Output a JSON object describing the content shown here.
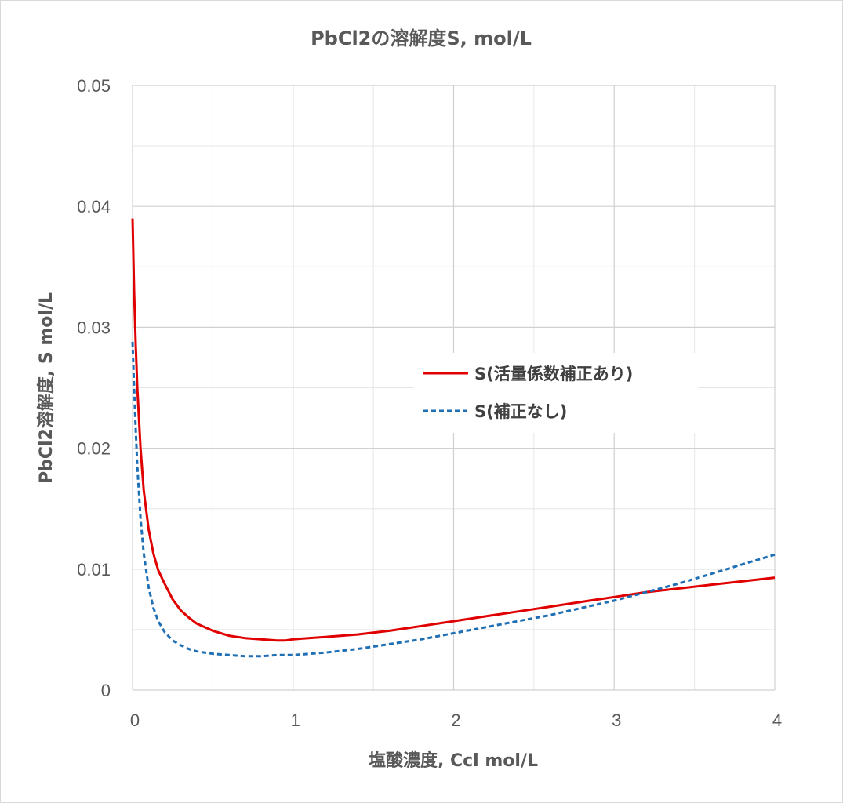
{
  "chart_data": {
    "type": "line",
    "title": "PbCl2の溶解度S, mol/L",
    "xlabel": "塩酸濃度, Ccl mol/L",
    "ylabel": "PbCl2溶解度, S mol/L",
    "xlim": [
      0,
      4
    ],
    "ylim": [
      0,
      0.05
    ],
    "x_ticks": [
      0,
      1,
      2,
      3,
      4
    ],
    "x_tick_labels": [
      "0",
      "1",
      "2",
      "3",
      "4"
    ],
    "x_minor_gridlines": [
      0.5,
      1.5,
      2.5,
      3.5
    ],
    "y_ticks": [
      0,
      0.01,
      0.02,
      0.03,
      0.04,
      0.05
    ],
    "y_tick_labels": [
      "0",
      "0.01",
      "0.02",
      "0.03",
      "0.04",
      "0.05"
    ],
    "y_minor_gridlines": [
      0.005,
      0.015,
      0.025,
      0.035,
      0.045
    ],
    "grid": true,
    "legend_position": "right",
    "series": [
      {
        "name": "S(活量係数補正あり)",
        "color": "#e00000",
        "style": "solid",
        "x": [
          0,
          0.01,
          0.02,
          0.03,
          0.05,
          0.07,
          0.1,
          0.13,
          0.16,
          0.2,
          0.25,
          0.3,
          0.35,
          0.4,
          0.5,
          0.6,
          0.7,
          0.8,
          0.9,
          0.95,
          1.0,
          1.2,
          1.4,
          1.6,
          1.8,
          2.0,
          2.2,
          2.4,
          2.6,
          2.8,
          3.0,
          3.2,
          3.4,
          3.6,
          3.8,
          4.0
        ],
        "y": [
          0.039,
          0.033,
          0.0285,
          0.025,
          0.02,
          0.0165,
          0.0133,
          0.0113,
          0.0099,
          0.0088,
          0.0075,
          0.0066,
          0.006,
          0.0055,
          0.0049,
          0.0045,
          0.0043,
          0.0042,
          0.0041,
          0.0041,
          0.0042,
          0.0044,
          0.0046,
          0.0049,
          0.0053,
          0.0057,
          0.0061,
          0.0065,
          0.0069,
          0.0073,
          0.0077,
          0.0081,
          0.0084,
          0.0087,
          0.009,
          0.0093
        ]
      },
      {
        "name": "S(補正なし)",
        "color": "#1f6fb5",
        "style": "dashed",
        "x": [
          0,
          0.01,
          0.02,
          0.03,
          0.05,
          0.07,
          0.1,
          0.13,
          0.16,
          0.2,
          0.25,
          0.3,
          0.35,
          0.4,
          0.5,
          0.6,
          0.7,
          0.8,
          0.9,
          1.0,
          1.2,
          1.4,
          1.6,
          1.8,
          2.0,
          2.2,
          2.4,
          2.6,
          2.8,
          3.0,
          3.2,
          3.4,
          3.6,
          3.8,
          4.0
        ],
        "y": [
          0.0288,
          0.025,
          0.0215,
          0.0185,
          0.0142,
          0.0113,
          0.0085,
          0.0068,
          0.0057,
          0.0048,
          0.0041,
          0.0037,
          0.0034,
          0.0032,
          0.003,
          0.0029,
          0.0028,
          0.0028,
          0.0029,
          0.0029,
          0.0031,
          0.0034,
          0.0038,
          0.0042,
          0.0047,
          0.0052,
          0.0057,
          0.0062,
          0.0068,
          0.0074,
          0.0081,
          0.0088,
          0.0096,
          0.0104,
          0.0112
        ]
      }
    ]
  }
}
